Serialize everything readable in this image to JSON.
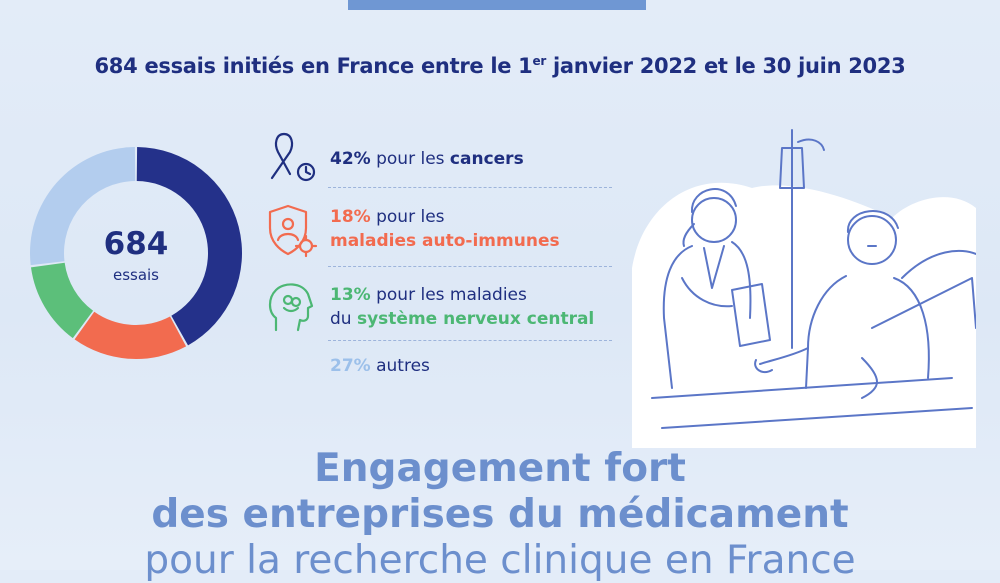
{
  "headline": {
    "text_before": "684 essais initiés en France entre le 1",
    "sup": "er",
    "text_after": " janvier 2022 et le 30 juin 2023"
  },
  "donut_center": {
    "number": "684",
    "label": "essais"
  },
  "stats": [
    {
      "pct": "42%",
      "line1": " pour les ",
      "highlight": "cancers",
      "color": "#1f2f80",
      "icon": "ribbon-clock-icon",
      "value": 42
    },
    {
      "pct": "18%",
      "line1": " pour les",
      "highlight": "maladies auto-immunes",
      "color": "#f26b4f",
      "icon": "shield-virus-icon",
      "value": 18
    },
    {
      "pct": "13%",
      "line1": " pour les maladies",
      "line2a": "du ",
      "highlight": "système nerveux central",
      "color": "#4cb774",
      "icon": "brain-head-icon",
      "value": 13
    },
    {
      "pct": "27%",
      "line1": " autres",
      "color": "#9cc0ea",
      "value": 27
    }
  ],
  "colors": {
    "dark_blue": "#24318a",
    "orange": "#f26b4f",
    "green": "#5cbf7a",
    "light_blue": "#b3cdee",
    "title_blue": "#6c8fcd"
  },
  "bottom": {
    "line1": "Engagement fort",
    "line2": "des entreprises du médicament",
    "line3": "pour la recherche clinique en France"
  }
}
